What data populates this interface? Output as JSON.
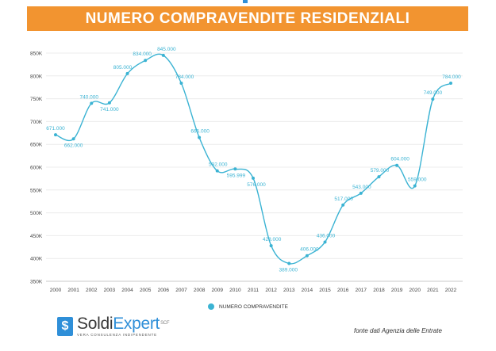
{
  "header": {
    "title": "NUMERO COMPRAVENDITE RESIDENZIALI"
  },
  "legend": {
    "label": "NUMERO COMPRAVENDITE"
  },
  "logo": {
    "name_part1": "Soldi",
    "name_part2": "Expert",
    "superscript": "SCF",
    "tagline": "VERA CONSULENZA INDIPENDENTE",
    "icon": "dollar-icon"
  },
  "source": {
    "text": "fonte dati Agenzia delle Entrate"
  },
  "colors": {
    "banner": "#f29430",
    "line": "#3bb3d3",
    "label": "#3bb3d3",
    "brand_blue": "#2f8fd8"
  },
  "chart_data": {
    "type": "line",
    "title": "NUMERO COMPRAVENDITE RESIDENZIALI",
    "xlabel": "",
    "ylabel": "",
    "categories": [
      "2000",
      "2001",
      "2002",
      "2003",
      "2004",
      "2005",
      "2006",
      "2007",
      "2008",
      "2009",
      "2010",
      "2011",
      "2012",
      "2013",
      "2014",
      "2015",
      "2016",
      "2017",
      "2018",
      "2019",
      "2020",
      "2021",
      "2022"
    ],
    "series": [
      {
        "name": "NUMERO COMPRAVENDITE",
        "values": [
          671000,
          662000,
          740000,
          741000,
          805000,
          834000,
          845000,
          784000,
          665000,
          592000,
          595999,
          576000,
          428000,
          389000,
          406000,
          436000,
          517000,
          543000,
          579000,
          604000,
          559000,
          749000,
          784000
        ],
        "labels": [
          "671.000",
          "662.000",
          "740.000",
          "741.000",
          "805.000",
          "834.000",
          "845.000",
          "784.000",
          "665.000",
          "592.000",
          "595.999",
          "576.000",
          "428.000",
          "389.000",
          "406.000",
          "436.000",
          "517.000",
          "543.000",
          "579.000",
          "604.000",
          "559.000",
          "749.000",
          "784.000"
        ]
      }
    ],
    "ylim": [
      350000,
      850000
    ],
    "yticks": [
      350000,
      400000,
      450000,
      500000,
      550000,
      600000,
      650000,
      700000,
      750000,
      800000,
      850000
    ],
    "ytick_labels": [
      "350K",
      "400K",
      "450K",
      "500K",
      "550K",
      "600K",
      "650K",
      "700K",
      "750K",
      "800K",
      "850K"
    ],
    "grid": true,
    "legend_position": "bottom"
  }
}
